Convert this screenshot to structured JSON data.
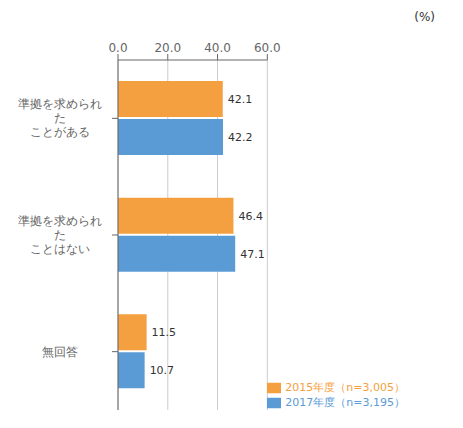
{
  "chart_data": {
    "type": "bar",
    "orientation": "horizontal",
    "categories": [
      "準拠を求められ\nた\nことがある",
      "準拠を求められ\nた\nことはない",
      "無回答"
    ],
    "series": [
      {
        "name": "2015年度（n=3,005）",
        "color": "#F5A040",
        "values": [
          42.1,
          46.4,
          11.5
        ]
      },
      {
        "name": "2017年度（n=3,195）",
        "color": "#5B9BD5",
        "values": [
          42.2,
          47.1,
          10.7
        ]
      }
    ],
    "xlim": [
      0,
      60
    ],
    "xticks": [
      {
        "value": 0,
        "label": "0.0"
      },
      {
        "value": 20,
        "label": "20.0"
      },
      {
        "value": 40,
        "label": "40.0"
      },
      {
        "value": 60,
        "label": "60.0"
      }
    ],
    "data_labels": true,
    "grid": true,
    "legend": "lower right",
    "annotations": [
      "(%)"
    ]
  }
}
